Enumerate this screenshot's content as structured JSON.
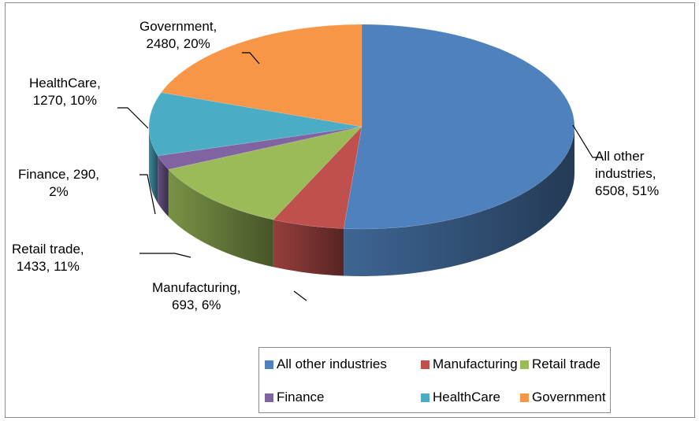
{
  "chart_data": {
    "type": "pie",
    "title": "",
    "style": "3d-exploded-none",
    "legend_position": "bottom",
    "slices": [
      {
        "name": "All other industries",
        "value": 6508,
        "percent": "51%",
        "color": "#4F81BD",
        "label_lines": [
          "All other",
          "industries,",
          "6508, 51%"
        ]
      },
      {
        "name": "Manufacturing",
        "value": 693,
        "percent": "6%",
        "color": "#C0504D",
        "label_lines": [
          "Manufacturing,",
          "693, 6%"
        ]
      },
      {
        "name": "Retail trade",
        "value": 1433,
        "percent": "11%",
        "color": "#9BBB59",
        "label_lines": [
          "Retail trade,",
          "1433, 11%"
        ]
      },
      {
        "name": "Finance",
        "value": 290,
        "percent": "2%",
        "color": "#8064A2",
        "label_lines": [
          "Finance, 290,",
          "2%"
        ]
      },
      {
        "name": "HealthCare",
        "value": 1270,
        "percent": "10%",
        "color": "#4BACC6",
        "label_lines": [
          "HealthCare,",
          "1270, 10%"
        ]
      },
      {
        "name": "Government",
        "value": 2480,
        "percent": "20%",
        "color": "#F79646",
        "label_lines": [
          "Government,",
          "2480, 20%"
        ]
      }
    ]
  }
}
